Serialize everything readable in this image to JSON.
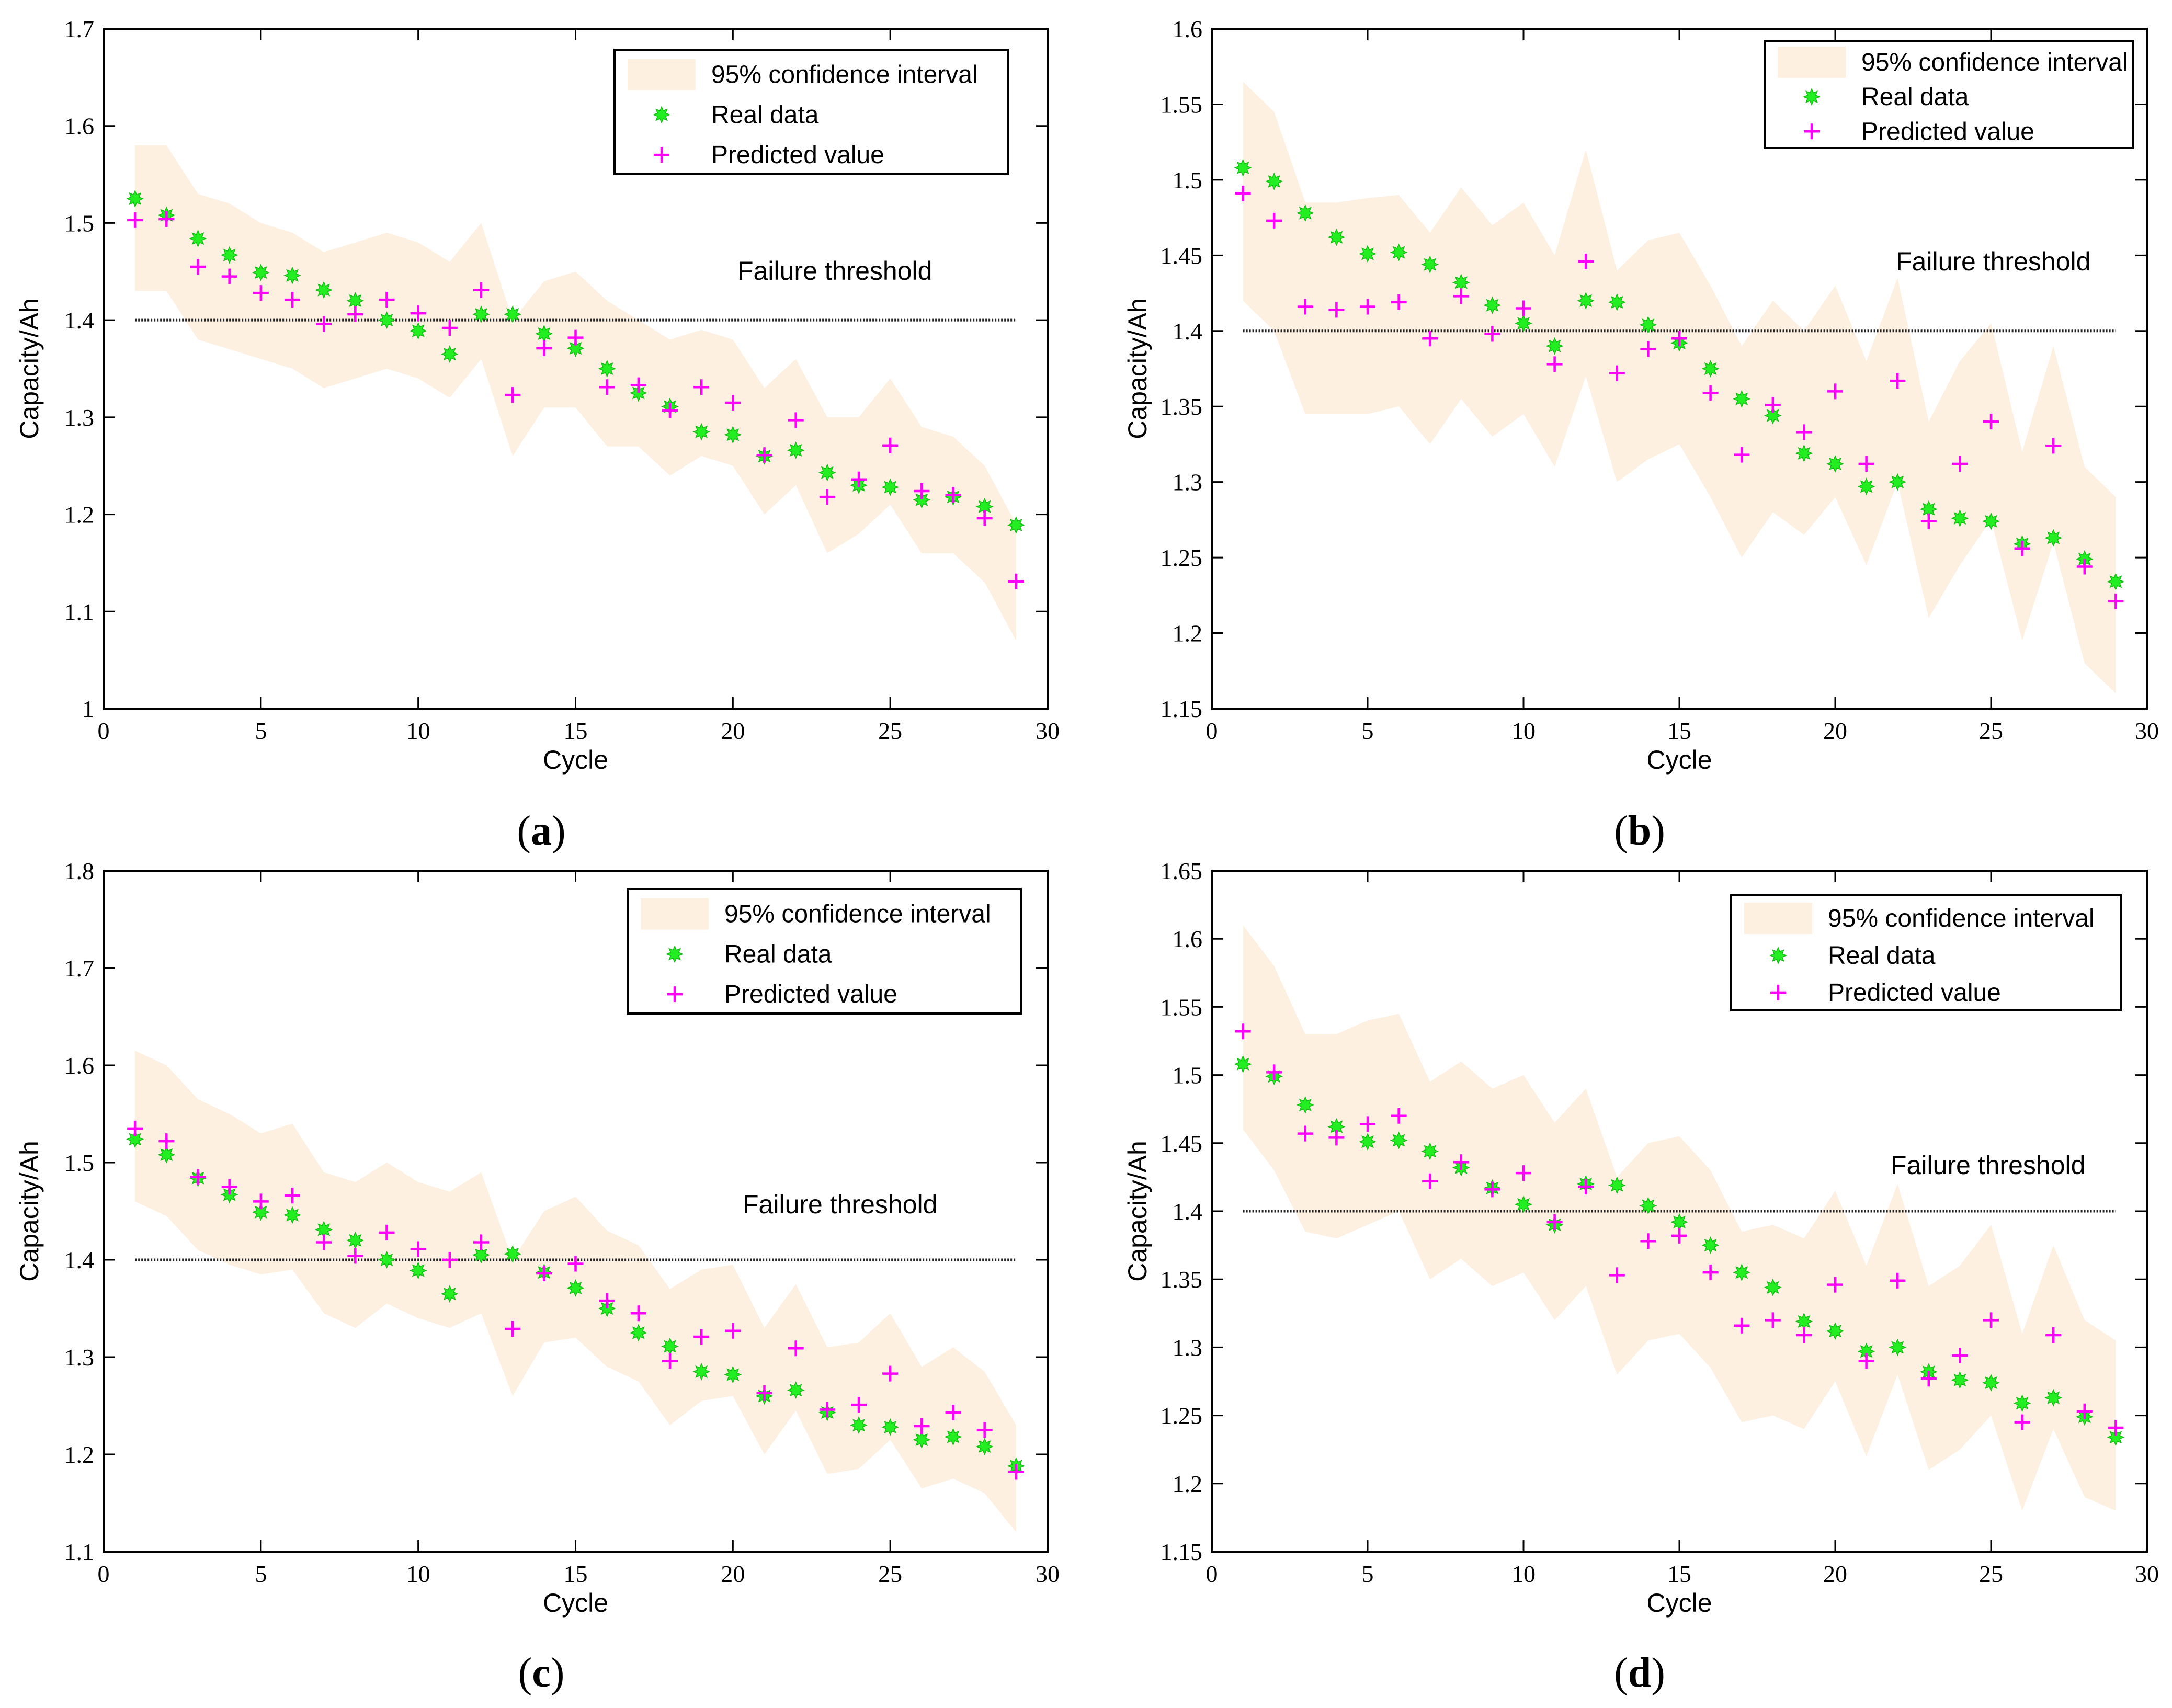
{
  "chart_data": [
    {
      "type": "scatter",
      "panel_label": "a",
      "title": "",
      "xlabel": "Cycle",
      "ylabel": "Capacity/Ah",
      "xlim": [
        0,
        30
      ],
      "ylim": [
        1.0,
        1.7
      ],
      "xticks": [
        0,
        5,
        10,
        15,
        20,
        25,
        30
      ],
      "yticks": [
        1.0,
        1.1,
        1.2,
        1.3,
        1.4,
        1.5,
        1.6,
        1.7
      ],
      "ytick_labels": [
        "1",
        "1.1",
        "1.2",
        "1.3",
        "1.4",
        "1.5",
        "1.6",
        "1.7"
      ],
      "legend": [
        "95% confidence interval",
        "Real data",
        "Predicted value"
      ],
      "legend_position": "top-right",
      "annotation": "Failure threshold",
      "threshold": 1.4,
      "threshold_range": [
        1,
        29
      ],
      "x": [
        1,
        2,
        3,
        4,
        5,
        6,
        7,
        8,
        9,
        10,
        11,
        12,
        13,
        14,
        15,
        16,
        17,
        18,
        19,
        20,
        21,
        22,
        23,
        24,
        25,
        26,
        27,
        28,
        29
      ],
      "series": [
        {
          "name": "Real data",
          "values": [
            1.525,
            1.508,
            1.484,
            1.467,
            1.449,
            1.446,
            1.431,
            1.42,
            1.4,
            1.389,
            1.365,
            1.406,
            1.406,
            1.386,
            1.371,
            1.35,
            1.325,
            1.311,
            1.285,
            1.282,
            1.26,
            1.266,
            1.243,
            1.23,
            1.228,
            1.215,
            1.218,
            1.208,
            1.189
          ]
        },
        {
          "name": "Predicted value",
          "values": [
            1.503,
            1.504,
            1.455,
            1.445,
            1.428,
            1.421,
            1.396,
            1.406,
            1.421,
            1.407,
            1.392,
            1.431,
            1.323,
            1.371,
            1.382,
            1.331,
            1.333,
            1.307,
            1.331,
            1.315,
            1.261,
            1.297,
            1.218,
            1.236,
            1.271,
            1.224,
            1.22,
            1.196,
            1.131
          ]
        },
        {
          "name": "95% confidence interval upper",
          "values": [
            1.58,
            1.58,
            1.53,
            1.52,
            1.5,
            1.49,
            1.47,
            1.48,
            1.49,
            1.48,
            1.46,
            1.5,
            1.4,
            1.44,
            1.45,
            1.42,
            1.4,
            1.38,
            1.39,
            1.38,
            1.33,
            1.36,
            1.3,
            1.3,
            1.34,
            1.29,
            1.28,
            1.25,
            1.19
          ]
        },
        {
          "name": "95% confidence interval lower",
          "values": [
            1.43,
            1.43,
            1.38,
            1.37,
            1.36,
            1.35,
            1.33,
            1.34,
            1.35,
            1.34,
            1.32,
            1.36,
            1.26,
            1.31,
            1.31,
            1.27,
            1.27,
            1.24,
            1.26,
            1.25,
            1.2,
            1.23,
            1.16,
            1.18,
            1.21,
            1.16,
            1.16,
            1.13,
            1.07
          ]
        }
      ]
    },
    {
      "type": "scatter",
      "panel_label": "b",
      "title": "",
      "xlabel": "Cycle",
      "ylabel": "Capacity/Ah",
      "xlim": [
        0,
        30
      ],
      "ylim": [
        1.15,
        1.6
      ],
      "xticks": [
        0,
        5,
        10,
        15,
        20,
        25,
        30
      ],
      "yticks": [
        1.15,
        1.2,
        1.25,
        1.3,
        1.35,
        1.4,
        1.45,
        1.5,
        1.55,
        1.6
      ],
      "ytick_labels": [
        "1.15",
        "1.2",
        "1.25",
        "1.3",
        "1.35",
        "1.4",
        "1.45",
        "1.5",
        "1.55",
        "1.6"
      ],
      "legend": [
        "95% confidence interval",
        "Real data",
        "Predicted value"
      ],
      "legend_position": "top-right",
      "annotation": "Failure threshold",
      "threshold": 1.4,
      "threshold_range": [
        1,
        29
      ],
      "x": [
        1,
        2,
        3,
        4,
        5,
        6,
        7,
        8,
        9,
        10,
        11,
        12,
        13,
        14,
        15,
        16,
        17,
        18,
        19,
        20,
        21,
        22,
        23,
        24,
        25,
        26,
        27,
        28,
        29
      ],
      "series": [
        {
          "name": "Real data",
          "values": [
            1.508,
            1.499,
            1.478,
            1.462,
            1.451,
            1.452,
            1.444,
            1.432,
            1.417,
            1.405,
            1.39,
            1.42,
            1.419,
            1.404,
            1.392,
            1.375,
            1.355,
            1.344,
            1.319,
            1.312,
            1.297,
            1.3,
            1.282,
            1.276,
            1.274,
            1.259,
            1.263,
            1.249,
            1.234
          ]
        },
        {
          "name": "Predicted value",
          "values": [
            1.491,
            1.473,
            1.416,
            1.414,
            1.416,
            1.419,
            1.395,
            1.423,
            1.398,
            1.415,
            1.378,
            1.446,
            1.372,
            1.388,
            1.395,
            1.359,
            1.318,
            1.351,
            1.333,
            1.36,
            1.312,
            1.367,
            1.274,
            1.312,
            1.34,
            1.256,
            1.324,
            1.244,
            1.221
          ]
        },
        {
          "name": "95% confidence interval upper",
          "values": [
            1.565,
            1.545,
            1.485,
            1.485,
            1.488,
            1.49,
            1.465,
            1.495,
            1.47,
            1.485,
            1.45,
            1.52,
            1.44,
            1.46,
            1.465,
            1.43,
            1.39,
            1.42,
            1.4,
            1.43,
            1.38,
            1.435,
            1.34,
            1.38,
            1.405,
            1.32,
            1.39,
            1.31,
            1.29
          ]
        },
        {
          "name": "95% confidence interval lower",
          "values": [
            1.42,
            1.4,
            1.345,
            1.345,
            1.345,
            1.35,
            1.325,
            1.355,
            1.33,
            1.345,
            1.31,
            1.37,
            1.3,
            1.315,
            1.325,
            1.29,
            1.25,
            1.28,
            1.265,
            1.29,
            1.245,
            1.3,
            1.21,
            1.245,
            1.275,
            1.195,
            1.26,
            1.18,
            1.16
          ]
        }
      ]
    },
    {
      "type": "scatter",
      "panel_label": "c",
      "title": "",
      "xlabel": "Cycle",
      "ylabel": "Capacity/Ah",
      "xlim": [
        0,
        30
      ],
      "ylim": [
        1.1,
        1.8
      ],
      "xticks": [
        0,
        5,
        10,
        15,
        20,
        25,
        30
      ],
      "yticks": [
        1.1,
        1.2,
        1.3,
        1.4,
        1.5,
        1.6,
        1.7,
        1.8
      ],
      "ytick_labels": [
        "1.1",
        "1.2",
        "1.3",
        "1.4",
        "1.5",
        "1.6",
        "1.7",
        "1.8"
      ],
      "legend": [
        "95% confidence interval",
        "Real data",
        "Predicted value"
      ],
      "legend_position": "top-right",
      "annotation": "Failure threshold",
      "threshold": 1.4,
      "threshold_range": [
        1,
        29
      ],
      "x": [
        1,
        2,
        3,
        4,
        5,
        6,
        7,
        8,
        9,
        10,
        11,
        12,
        13,
        14,
        15,
        16,
        17,
        18,
        19,
        20,
        21,
        22,
        23,
        24,
        25,
        26,
        27,
        28,
        29
      ],
      "series": [
        {
          "name": "Real data",
          "values": [
            1.524,
            1.508,
            1.484,
            1.467,
            1.449,
            1.446,
            1.431,
            1.42,
            1.4,
            1.389,
            1.365,
            1.405,
            1.406,
            1.387,
            1.371,
            1.35,
            1.325,
            1.311,
            1.285,
            1.282,
            1.26,
            1.266,
            1.243,
            1.23,
            1.228,
            1.215,
            1.218,
            1.208,
            1.188
          ]
        },
        {
          "name": "Predicted value",
          "values": [
            1.535,
            1.522,
            1.485,
            1.475,
            1.46,
            1.466,
            1.418,
            1.404,
            1.428,
            1.411,
            1.4,
            1.418,
            1.329,
            1.386,
            1.396,
            1.358,
            1.345,
            1.296,
            1.321,
            1.327,
            1.263,
            1.309,
            1.246,
            1.251,
            1.283,
            1.229,
            1.243,
            1.225,
            1.182
          ]
        },
        {
          "name": "95% confidence interval upper",
          "values": [
            1.615,
            1.6,
            1.565,
            1.55,
            1.53,
            1.54,
            1.49,
            1.48,
            1.5,
            1.48,
            1.47,
            1.49,
            1.4,
            1.45,
            1.465,
            1.43,
            1.415,
            1.37,
            1.39,
            1.395,
            1.33,
            1.375,
            1.31,
            1.315,
            1.345,
            1.29,
            1.31,
            1.285,
            1.23
          ]
        },
        {
          "name": "95% confidence interval lower",
          "values": [
            1.46,
            1.445,
            1.41,
            1.395,
            1.385,
            1.39,
            1.345,
            1.33,
            1.355,
            1.34,
            1.33,
            1.345,
            1.26,
            1.315,
            1.32,
            1.29,
            1.275,
            1.23,
            1.255,
            1.26,
            1.2,
            1.245,
            1.18,
            1.185,
            1.215,
            1.165,
            1.175,
            1.16,
            1.12
          ]
        }
      ]
    },
    {
      "type": "scatter",
      "panel_label": "d",
      "title": "",
      "xlabel": "Cycle",
      "ylabel": "Capacity/Ah",
      "xlim": [
        0,
        30
      ],
      "ylim": [
        1.15,
        1.65
      ],
      "xticks": [
        0,
        5,
        10,
        15,
        20,
        25,
        30
      ],
      "yticks": [
        1.15,
        1.2,
        1.25,
        1.3,
        1.35,
        1.4,
        1.45,
        1.5,
        1.55,
        1.6,
        1.65
      ],
      "ytick_labels": [
        "1.15",
        "1.2",
        "1.25",
        "1.3",
        "1.35",
        "1.4",
        "1.45",
        "1.5",
        "1.55",
        "1.6",
        "1.65"
      ],
      "legend": [
        "95% confidence interval",
        "Real data",
        "Predicted value"
      ],
      "legend_position": "top-right",
      "annotation": "Failure threshold",
      "threshold": 1.4,
      "threshold_range": [
        1,
        29
      ],
      "x": [
        1,
        2,
        3,
        4,
        5,
        6,
        7,
        8,
        9,
        10,
        11,
        12,
        13,
        14,
        15,
        16,
        17,
        18,
        19,
        20,
        21,
        22,
        23,
        24,
        25,
        26,
        27,
        28,
        29
      ],
      "series": [
        {
          "name": "Real data",
          "values": [
            1.508,
            1.499,
            1.478,
            1.462,
            1.451,
            1.452,
            1.444,
            1.432,
            1.417,
            1.405,
            1.39,
            1.42,
            1.419,
            1.404,
            1.392,
            1.375,
            1.355,
            1.344,
            1.319,
            1.312,
            1.297,
            1.3,
            1.282,
            1.276,
            1.274,
            1.259,
            1.263,
            1.249,
            1.234
          ]
        },
        {
          "name": "Predicted value",
          "values": [
            1.532,
            1.502,
            1.457,
            1.454,
            1.464,
            1.47,
            1.422,
            1.436,
            1.416,
            1.428,
            1.392,
            1.418,
            1.353,
            1.378,
            1.382,
            1.355,
            1.316,
            1.32,
            1.309,
            1.346,
            1.29,
            1.349,
            1.277,
            1.294,
            1.32,
            1.245,
            1.309,
            1.253,
            1.241
          ]
        },
        {
          "name": "95% confidence interval upper",
          "values": [
            1.61,
            1.58,
            1.53,
            1.53,
            1.54,
            1.545,
            1.495,
            1.51,
            1.49,
            1.5,
            1.465,
            1.49,
            1.425,
            1.45,
            1.455,
            1.43,
            1.385,
            1.39,
            1.38,
            1.415,
            1.36,
            1.42,
            1.345,
            1.36,
            1.39,
            1.31,
            1.375,
            1.32,
            1.305
          ]
        },
        {
          "name": "95% confidence interval lower",
          "values": [
            1.46,
            1.43,
            1.385,
            1.38,
            1.39,
            1.4,
            1.35,
            1.365,
            1.345,
            1.355,
            1.32,
            1.345,
            1.28,
            1.305,
            1.31,
            1.285,
            1.245,
            1.25,
            1.24,
            1.275,
            1.22,
            1.28,
            1.21,
            1.225,
            1.25,
            1.18,
            1.24,
            1.19,
            1.18
          ]
        }
      ]
    }
  ],
  "colors": {
    "real": "#22ee22",
    "predicted": "#ff00ff",
    "band": "#fdf0e0",
    "threshold": "#222222",
    "axis": "#000000"
  }
}
